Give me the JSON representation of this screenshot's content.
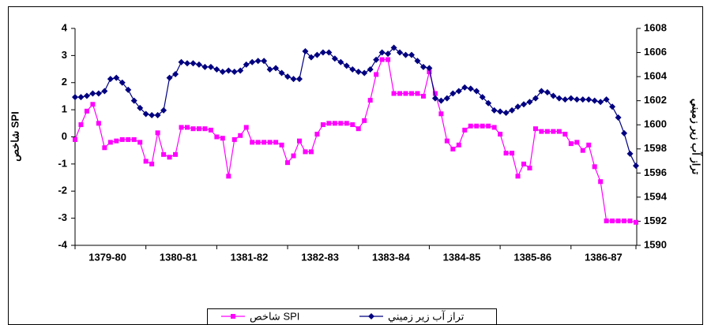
{
  "chart_data": {
    "type": "line",
    "y_label": "شاخص SPI",
    "y2_label": "تراز آب زير زميني",
    "categories": [
      null,
      null,
      null,
      null,
      null,
      "1379-80",
      null,
      null,
      null,
      null,
      null,
      null,
      null,
      null,
      null,
      null,
      null,
      "1380-81",
      null,
      null,
      null,
      null,
      null,
      null,
      null,
      null,
      null,
      null,
      null,
      "1381-82",
      null,
      null,
      null,
      null,
      null,
      null,
      null,
      null,
      null,
      null,
      null,
      "1382-83",
      null,
      null,
      null,
      null,
      null,
      null,
      null,
      null,
      null,
      null,
      null,
      "1383-84",
      null,
      null,
      null,
      null,
      null,
      null,
      null,
      null,
      null,
      null,
      null,
      "1384-85",
      null,
      null,
      null,
      null,
      null,
      null,
      null,
      null,
      null,
      null,
      null,
      "1385-86",
      null,
      null,
      null,
      null,
      null,
      null,
      null,
      null,
      null,
      null,
      null,
      "1386-87",
      null,
      null,
      null,
      null,
      null,
      null
    ],
    "ylim": [
      -4,
      4
    ],
    "yticks": [
      -4,
      -3,
      -2,
      -1,
      0,
      1,
      2,
      3,
      4
    ],
    "y2lim": [
      1590,
      1608
    ],
    "y2ticks": [
      1590,
      1592,
      1594,
      1596,
      1598,
      1600,
      1602,
      1604,
      1606,
      1608
    ],
    "grid": false,
    "legend": "bottom",
    "series": [
      {
        "name": "شاخص SPI",
        "color": "#ff00ff",
        "marker": "square",
        "axis": "y",
        "values": [
          -0.1,
          0.45,
          0.95,
          1.2,
          0.5,
          -0.4,
          -0.2,
          -0.15,
          -0.1,
          -0.1,
          -0.1,
          -0.2,
          -0.9,
          -1.0,
          0.15,
          -0.65,
          -0.75,
          -0.65,
          0.35,
          0.35,
          0.3,
          0.3,
          0.3,
          0.25,
          0.0,
          -0.05,
          -1.45,
          -0.1,
          0.05,
          0.35,
          -0.2,
          -0.2,
          -0.2,
          -0.2,
          -0.2,
          -0.3,
          -0.95,
          -0.7,
          -0.15,
          -0.55,
          -0.55,
          0.1,
          0.45,
          0.5,
          0.5,
          0.5,
          0.5,
          0.45,
          0.3,
          0.6,
          1.35,
          2.3,
          2.85,
          2.85,
          1.6,
          1.6,
          1.6,
          1.6,
          1.6,
          1.5,
          2.4,
          1.6,
          0.85,
          -0.15,
          -0.45,
          -0.3,
          0.25,
          0.4,
          0.4,
          0.4,
          0.4,
          0.35,
          0.1,
          -0.6,
          -0.6,
          -1.45,
          -1.0,
          -1.15,
          0.3,
          0.2,
          0.2,
          0.2,
          0.2,
          0.1,
          -0.25,
          -0.2,
          -0.5,
          -0.3,
          -1.1,
          -1.65,
          -3.1,
          -3.1,
          -3.1,
          -3.1,
          -3.1,
          -3.15
        ]
      },
      {
        "name": "تراز آب زير زميني",
        "color": "#000080",
        "marker": "diamond",
        "axis": "y2",
        "values": [
          1602.3,
          1602.3,
          1602.4,
          1602.6,
          1602.6,
          1602.8,
          1603.8,
          1603.9,
          1603.5,
          1602.9,
          1602.0,
          1601.4,
          1600.9,
          1600.8,
          1600.8,
          1601.2,
          1603.9,
          1604.2,
          1605.2,
          1605.1,
          1605.1,
          1605.0,
          1604.8,
          1604.8,
          1604.6,
          1604.4,
          1604.5,
          1604.4,
          1604.5,
          1605.0,
          1605.2,
          1605.3,
          1605.3,
          1604.6,
          1604.7,
          1604.3,
          1604.0,
          1603.8,
          1603.8,
          1606.1,
          1605.6,
          1605.8,
          1606.0,
          1606.0,
          1605.5,
          1605.2,
          1604.9,
          1604.6,
          1604.4,
          1604.3,
          1604.6,
          1605.4,
          1606.0,
          1605.9,
          1606.4,
          1606.0,
          1605.8,
          1605.8,
          1605.3,
          1604.8,
          1604.7,
          1602.2,
          1602.0,
          1602.2,
          1602.6,
          1602.8,
          1603.1,
          1603.0,
          1602.8,
          1602.3,
          1601.8,
          1601.2,
          1601.1,
          1601.0,
          1601.2,
          1601.5,
          1601.7,
          1601.9,
          1602.2,
          1602.8,
          1602.7,
          1602.4,
          1602.2,
          1602.1,
          1602.2,
          1602.1,
          1602.1,
          1602.1,
          1602.0,
          1601.9,
          1602.1,
          1601.5,
          1600.6,
          1599.3,
          1597.6,
          1596.6
        ]
      }
    ]
  }
}
